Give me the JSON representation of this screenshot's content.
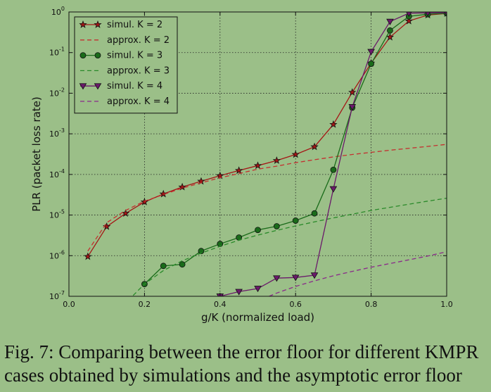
{
  "chart_data": {
    "type": "line",
    "title": "",
    "xlabel": "g/K (normalized load)",
    "ylabel": "PLR (packet loss rate)",
    "xlim": [
      0.0,
      1.0
    ],
    "ylim": [
      1e-07,
      1
    ],
    "yscale": "log",
    "grid": true,
    "legend_position": "top-left",
    "x_ticks": [
      "0.0",
      "0.2",
      "0.4",
      "0.6",
      "0.8",
      "1.0"
    ],
    "y_ticks": [
      {
        "mant": "10",
        "exp": "-7",
        "value": 1e-07
      },
      {
        "mant": "10",
        "exp": "-6",
        "value": 1e-06
      },
      {
        "mant": "10",
        "exp": "-5",
        "value": 1e-05
      },
      {
        "mant": "10",
        "exp": "-4",
        "value": 0.0001
      },
      {
        "mant": "10",
        "exp": "-3",
        "value": 0.001
      },
      {
        "mant": "10",
        "exp": "-2",
        "value": 0.01
      },
      {
        "mant": "10",
        "exp": "-1",
        "value": 0.1
      },
      {
        "mant": "10",
        "exp": "0",
        "value": 1
      }
    ],
    "series": [
      {
        "name": "simul. K = 2",
        "color": "#a51616",
        "style": "solid",
        "marker": "star",
        "x": [
          0.05,
          0.1,
          0.15,
          0.2,
          0.25,
          0.3,
          0.35,
          0.4,
          0.45,
          0.5,
          0.55,
          0.6,
          0.65,
          0.7,
          0.75,
          0.8,
          0.85,
          0.9,
          0.95,
          1.0
        ],
        "y": [
          9.5e-07,
          5.2e-06,
          1.1e-05,
          2.1e-05,
          3.3e-05,
          4.9e-05,
          6.8e-05,
          9.3e-05,
          0.000125,
          0.000165,
          0.00022,
          0.00031,
          0.00048,
          0.0017,
          0.0105,
          0.055,
          0.24,
          0.6,
          0.84,
          0.92
        ]
      },
      {
        "name": "approx. K = 2",
        "color": "#c43030",
        "style": "dashed",
        "marker": "none",
        "x": [
          0.05,
          0.1,
          0.15,
          0.2,
          0.25,
          0.3,
          0.35,
          0.4,
          0.45,
          0.5,
          0.55,
          0.6,
          0.65,
          0.7,
          0.75,
          0.8,
          0.85,
          0.9,
          0.95,
          1.0
        ],
        "y": [
          1.3e-06,
          6.5e-06,
          1.3e-05,
          2.2e-05,
          3.2e-05,
          4.6e-05,
          6.2e-05,
          8.3e-05,
          0.000105,
          0.000135,
          0.00016,
          0.000195,
          0.00023,
          0.00027,
          0.00031,
          0.00035,
          0.000395,
          0.00044,
          0.00049,
          0.00055
        ]
      },
      {
        "name": "simul. K = 3",
        "color": "#1a6b1a",
        "style": "solid",
        "marker": "circle",
        "x": [
          0.2,
          0.25,
          0.3,
          0.35,
          0.4,
          0.45,
          0.5,
          0.55,
          0.6,
          0.65,
          0.7,
          0.75,
          0.8,
          0.85,
          0.9,
          0.95,
          1.0
        ],
        "y": [
          2e-07,
          5.6e-07,
          6.1e-07,
          1.3e-06,
          1.95e-06,
          2.8e-06,
          4.3e-06,
          5.3e-06,
          7.3e-06,
          1.1e-05,
          0.00013,
          0.0044,
          0.053,
          0.35,
          0.78,
          0.88,
          0.93
        ]
      },
      {
        "name": "approx. K = 3",
        "color": "#2a8a2a",
        "style": "dashed",
        "marker": "none",
        "x": [
          0.17,
          0.2,
          0.25,
          0.3,
          0.35,
          0.4,
          0.45,
          0.5,
          0.55,
          0.6,
          0.65,
          0.7,
          0.75,
          0.8,
          0.85,
          0.9,
          0.95,
          1.0
        ],
        "y": [
          1.05e-07,
          2e-07,
          4.3e-07,
          7.5e-07,
          1.15e-06,
          1.7e-06,
          2.4e-06,
          3.2e-06,
          4.2e-06,
          5.4e-06,
          6.8e-06,
          8.5e-06,
          1.05e-05,
          1.3e-05,
          1.55e-05,
          1.85e-05,
          2.2e-05,
          2.6e-05
        ]
      },
      {
        "name": "simul. K = 4",
        "color": "#6b1a6b",
        "style": "solid",
        "marker": "triangle-down",
        "x": [
          0.4,
          0.45,
          0.5,
          0.55,
          0.6,
          0.65,
          0.7,
          0.75,
          0.8,
          0.85,
          0.9,
          0.95,
          1.0
        ],
        "y": [
          1e-07,
          1.3e-07,
          1.55e-07,
          2.8e-07,
          2.9e-07,
          3.3e-07,
          4.4e-05,
          0.0046,
          0.105,
          0.58,
          0.93,
          0.95,
          0.96
        ]
      },
      {
        "name": "approx. K = 4",
        "color": "#8a2a8a",
        "style": "dashed",
        "marker": "none",
        "x": [
          0.53,
          0.55,
          0.6,
          0.65,
          0.7,
          0.75,
          0.8,
          0.85,
          0.9,
          0.95,
          1.0
        ],
        "y": [
          1e-07,
          1.2e-07,
          1.75e-07,
          2.4e-07,
          3.2e-07,
          4.1e-07,
          5.2e-07,
          6.4e-07,
          7.9e-07,
          9.8e-07,
          1.25e-06
        ]
      }
    ]
  },
  "caption": {
    "line1": "Fig. 7: Comparing between the error floor for different KMPR",
    "line2": "cases obtained by simulations and the asymptotic error floor"
  }
}
